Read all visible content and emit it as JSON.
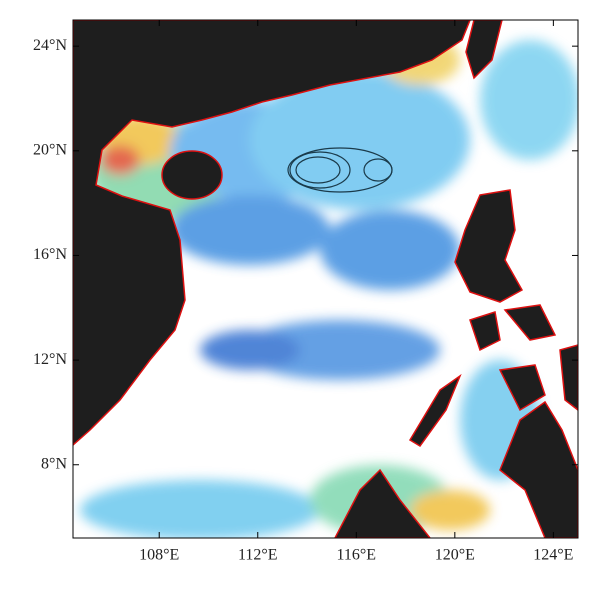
{
  "chart_data": {
    "type": "map",
    "xlim": [
      104.5,
      125
    ],
    "ylim": [
      5.2,
      25
    ],
    "xticks": [
      {
        "value": 108,
        "label": "108°E"
      },
      {
        "value": 112,
        "label": "112°E"
      },
      {
        "value": 116,
        "label": "116°E"
      },
      {
        "value": 120,
        "label": "120°E"
      },
      {
        "value": 124,
        "label": "124°E"
      }
    ],
    "yticks": [
      {
        "value": 8,
        "label": "8°N"
      },
      {
        "value": 12,
        "label": "12°N"
      },
      {
        "value": 16,
        "label": "16°N"
      },
      {
        "value": 20,
        "label": "20°N"
      },
      {
        "value": 24,
        "label": "24°N"
      }
    ]
  }
}
